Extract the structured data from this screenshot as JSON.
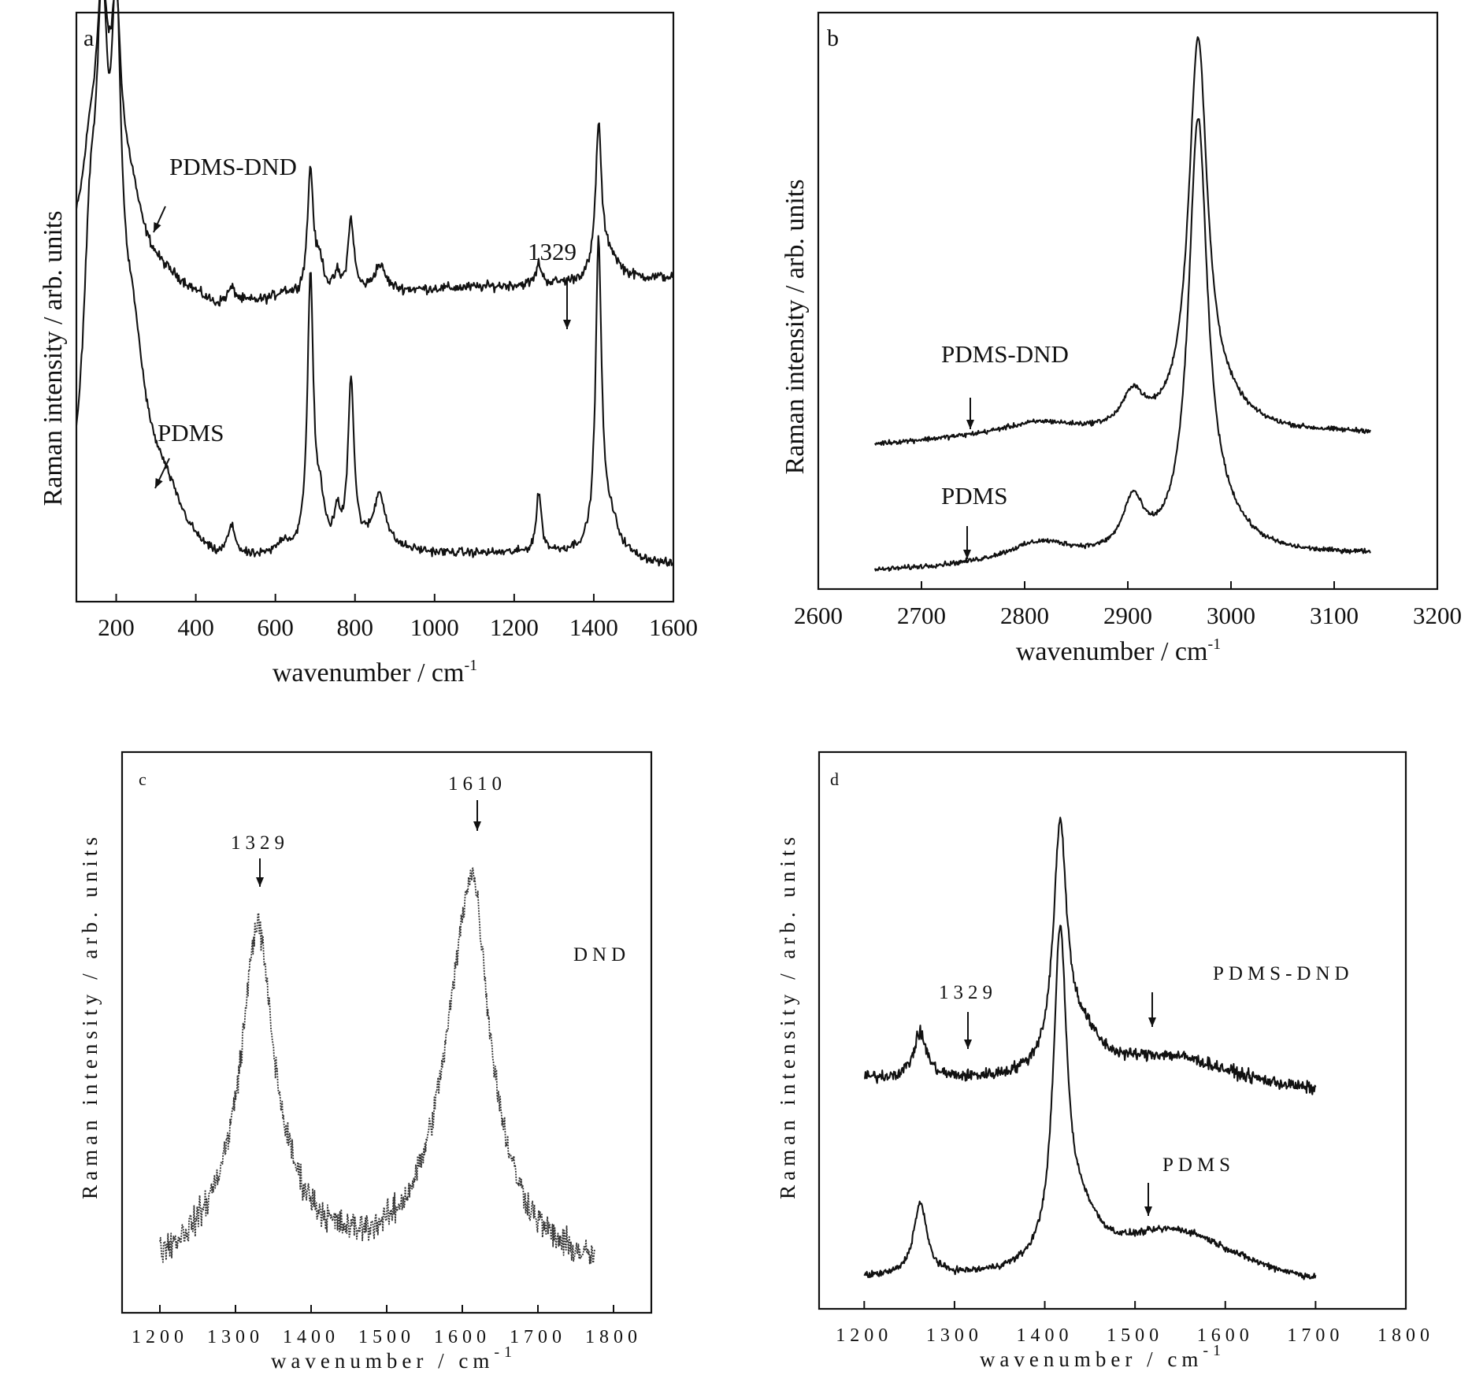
{
  "chart_data": [
    {
      "panel": "a",
      "type": "line",
      "xlabel": "wavenumber / cm",
      "xlabel_sup": "-1",
      "ylabel": "Raman intensity / arb. units",
      "xlim": [
        100,
        1600
      ],
      "ylim": [
        0,
        100
      ],
      "xticks": [
        200,
        400,
        600,
        800,
        1000,
        1200,
        1400,
        1600
      ],
      "series": [
        {
          "name": "PDMS-DND",
          "baseline": 45,
          "noise": 0.7,
          "x_range": [
            100,
            1600
          ],
          "peaks": [
            [
              165,
              36,
              18
            ],
            [
              200,
              33,
              16
            ],
            [
              135,
              14,
              25
            ],
            [
              235,
              9,
              30
            ],
            [
              490,
              2.5,
              13
            ],
            [
              620,
              1.2,
              18
            ],
            [
              688,
              21,
              9
            ],
            [
              712,
              5,
              12
            ],
            [
              755,
              3,
              8
            ],
            [
              790,
              12.5,
              9
            ],
            [
              862,
              4.5,
              18
            ],
            [
              1262,
              3.5,
              8
            ],
            [
              1412,
              25,
              9
            ],
            [
              1440,
              4,
              28
            ]
          ],
          "slope": [
            [
              250,
              13
            ],
            [
              450,
              5
            ],
            [
              600,
              6
            ],
            [
              1000,
              8
            ],
            [
              1350,
              9
            ],
            [
              1600,
              10
            ]
          ]
        },
        {
          "name": "PDMS",
          "baseline": 5,
          "noise": 0.6,
          "x_range": [
            100,
            1600
          ],
          "peaks": [
            [
              165,
              66,
              18
            ],
            [
              200,
              64,
              16
            ],
            [
              135,
              40,
              22
            ],
            [
              240,
              28,
              40
            ],
            [
              320,
              8,
              60
            ],
            [
              490,
              5,
              13
            ],
            [
              620,
              2,
              18
            ],
            [
              688,
              46,
              9
            ],
            [
              712,
              7,
              12
            ],
            [
              755,
              5,
              8
            ],
            [
              790,
              28,
              9
            ],
            [
              862,
              9,
              18
            ],
            [
              1262,
              10,
              8
            ],
            [
              1412,
              51,
              9
            ],
            [
              1440,
              6,
              28
            ]
          ],
          "slope": [
            [
              250,
              4
            ],
            [
              450,
              0
            ],
            [
              800,
              4
            ],
            [
              1000,
              3
            ],
            [
              1350,
              3
            ],
            [
              1600,
              1
            ]
          ]
        }
      ],
      "annotations": [
        {
          "text": "PDMS-DND",
          "x": 300,
          "y": 70
        },
        {
          "text": "PDMS",
          "x": 270,
          "y": 28
        },
        {
          "text": "1329",
          "x": 1329,
          "y": 58
        }
      ]
    },
    {
      "panel": "b",
      "type": "line",
      "xlabel": "wavenumber / cm",
      "xlabel_sup": "-1",
      "ylabel": "Raman intensity / arb. units",
      "xlim": [
        2600,
        3200
      ],
      "ylim": [
        0,
        100
      ],
      "xticks": [
        2600,
        2700,
        2800,
        2900,
        3000,
        3100,
        3200
      ],
      "series": [
        {
          "name": "PDMS-DND",
          "baseline": 25,
          "noise": 0.35,
          "x_range": [
            2655,
            3135
          ],
          "peaks": [
            [
              2815,
              2,
              40
            ],
            [
              2905,
              6,
              12
            ],
            [
              2968,
              66,
              11
            ],
            [
              2990,
              4,
              30
            ]
          ],
          "slope": [
            [
              2655,
              0
            ],
            [
              2780,
              1.5
            ],
            [
              3135,
              2
            ]
          ]
        },
        {
          "name": "PDMS",
          "baseline": 3,
          "noise": 0.35,
          "x_range": [
            2655,
            3135
          ],
          "peaks": [
            [
              2815,
              3.5,
              40
            ],
            [
              2905,
              9,
              12
            ],
            [
              2968,
              73,
              11
            ],
            [
              2990,
              5,
              30
            ]
          ],
          "slope": [
            [
              2655,
              0
            ],
            [
              2780,
              1
            ],
            [
              3135,
              3
            ]
          ]
        }
      ],
      "annotations": [
        {
          "text": "PDMS-DND",
          "x": 2750,
          "y": 38
        },
        {
          "text": "PDMS",
          "x": 2745,
          "y": 16
        }
      ]
    },
    {
      "panel": "c",
      "type": "line",
      "xlabel": "wavenumber / cm",
      "xlabel_sup": "-1",
      "ylabel": "Raman intensity / arb. units",
      "xlim": [
        1150,
        1850
      ],
      "ylim": [
        0,
        100
      ],
      "xticks": [
        1200,
        1300,
        1400,
        1500,
        1600,
        1700,
        1800
      ],
      "series": [
        {
          "name": "DND",
          "baseline": 6,
          "noise": 2.2,
          "dotted": true,
          "x_range": [
            1200,
            1775
          ],
          "peaks": [
            [
              1329,
              42,
              22
            ],
            [
              1329,
              20,
              60
            ],
            [
              1605,
              48,
              45
            ],
            [
              1615,
              25,
              20
            ]
          ],
          "slope": [
            [
              1200,
              0
            ],
            [
              1775,
              0
            ]
          ]
        }
      ],
      "annotations": [
        {
          "text": "1329",
          "x": 1329,
          "y": 88
        },
        {
          "text": "1610",
          "x": 1610,
          "y": 98
        },
        {
          "text": "DND",
          "x": 1700,
          "y": 68
        }
      ]
    },
    {
      "panel": "d",
      "type": "line",
      "xlabel": "wavenumber / cm",
      "xlabel_sup": "-1",
      "ylabel": "Raman intensity / arb. units",
      "xlim": [
        1150,
        1800
      ],
      "ylim": [
        0,
        100
      ],
      "xticks": [
        1200,
        1300,
        1400,
        1500,
        1600,
        1700,
        1800
      ],
      "series": [
        {
          "name": "PDMS-DND",
          "baseline": 41,
          "noise": 0.9,
          "x_range": [
            1200,
            1700
          ],
          "peaks": [
            [
              1262,
              8,
              9
            ],
            [
              1417,
              42,
              9
            ],
            [
              1440,
              7,
              25
            ],
            [
              1540,
              6,
              90
            ]
          ],
          "slope": [
            [
              1200,
              0
            ],
            [
              1700,
              -3
            ]
          ]
        },
        {
          "name": "PDMS",
          "baseline": 5,
          "noise": 0.5,
          "x_range": [
            1200,
            1700
          ],
          "peaks": [
            [
              1262,
              13,
              9
            ],
            [
              1417,
              57,
              9
            ],
            [
              1440,
              8,
              25
            ],
            [
              1545,
              10,
              90
            ]
          ],
          "slope": [
            [
              1200,
              0
            ],
            [
              1700,
              -2
            ]
          ]
        }
      ],
      "annotations": [
        {
          "text": "1329",
          "x": 1329,
          "y": 56
        },
        {
          "text": "PDMS-DND",
          "x": 1555,
          "y": 60
        },
        {
          "text": "PDMS",
          "x": 1550,
          "y": 26
        }
      ]
    }
  ]
}
